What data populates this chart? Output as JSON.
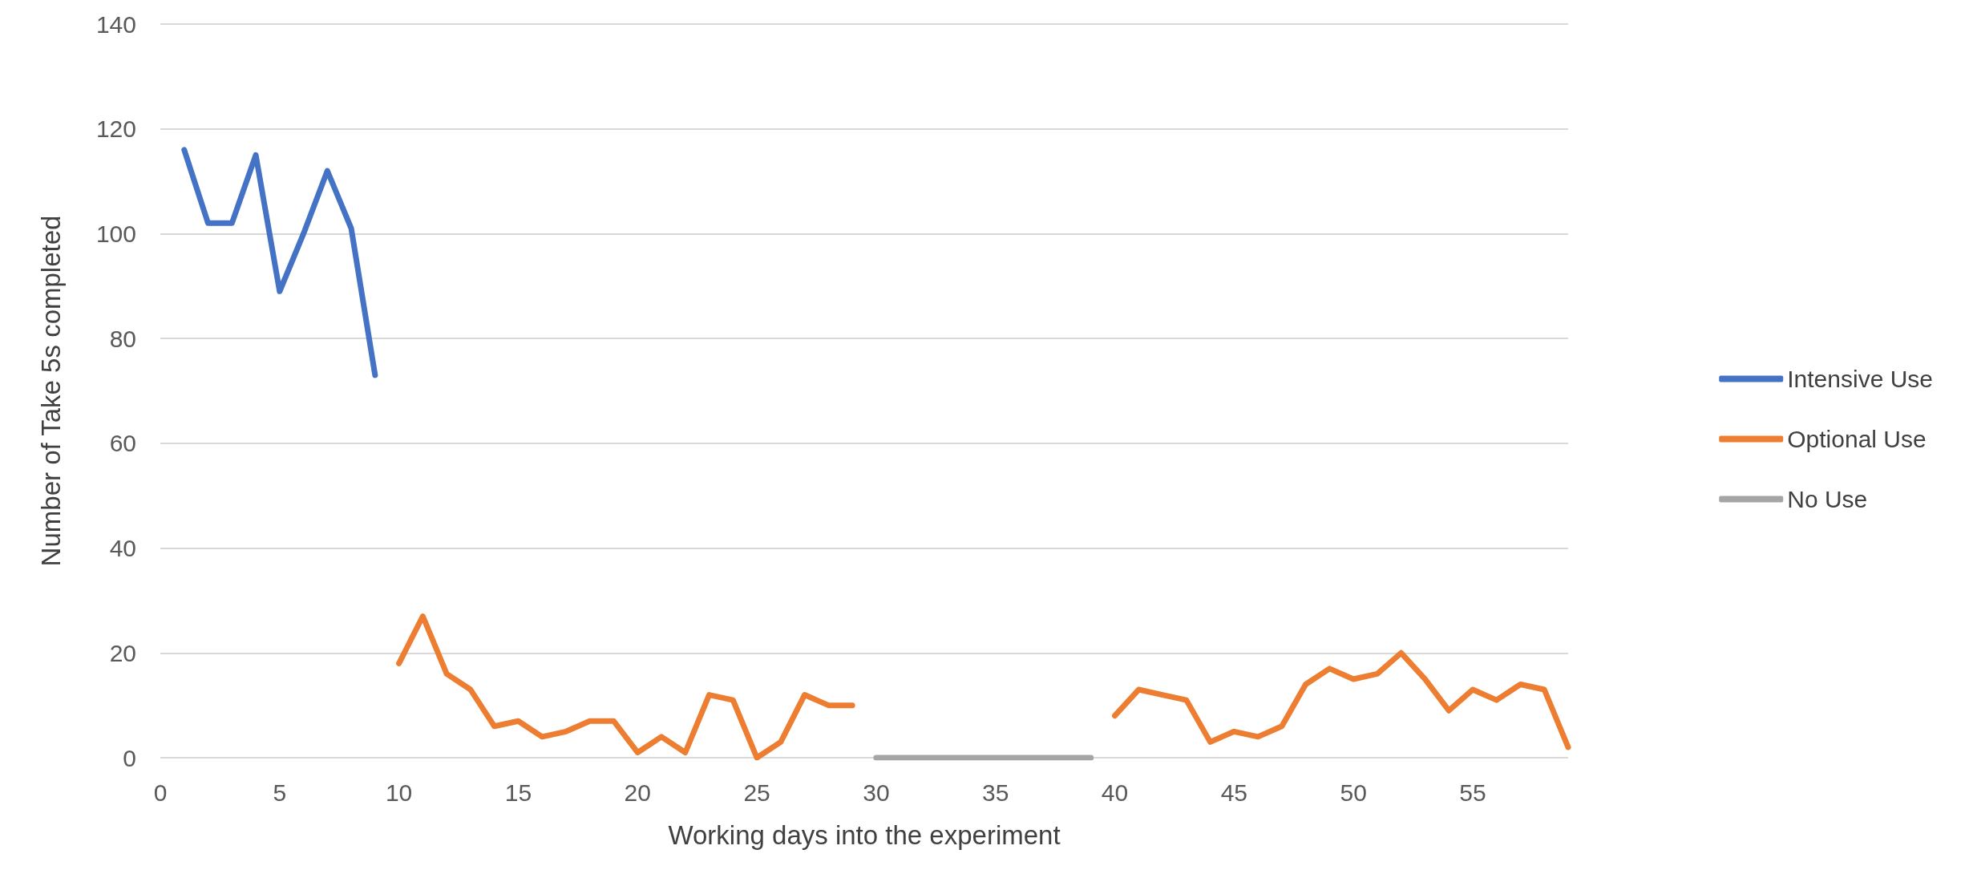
{
  "chart_data": {
    "type": "line",
    "xlabel": "Working days into the experiment",
    "ylabel": "Number of Take 5s completed",
    "xlim": [
      0,
      59
    ],
    "xticks": [
      0,
      5,
      10,
      15,
      20,
      25,
      30,
      35,
      40,
      45,
      50,
      55
    ],
    "ylim": [
      0,
      140
    ],
    "yticks": [
      0,
      20,
      40,
      60,
      80,
      100,
      120,
      140
    ],
    "grid": "y",
    "legend": "right",
    "marker": "none",
    "line_style": "solid",
    "series": [
      {
        "name": "Intensive Use",
        "color": "#4472c4",
        "x": [
          1,
          2,
          3,
          4,
          5,
          6,
          7,
          8,
          9
        ],
        "values": [
          116,
          102,
          102,
          115,
          89,
          100,
          112,
          101,
          73
        ]
      },
      {
        "name": "Optional Use",
        "color": "#ed7d31",
        "x": [
          10,
          11,
          12,
          13,
          14,
          15,
          16,
          17,
          18,
          19,
          20,
          21,
          22,
          23,
          24,
          25,
          26,
          27,
          28,
          29,
          30,
          31,
          32,
          33,
          34,
          35,
          36,
          37,
          38,
          39,
          40,
          41,
          42,
          43,
          44,
          45,
          46,
          47,
          48,
          49,
          50,
          51,
          52,
          53,
          54,
          55,
          56,
          57,
          58,
          59
        ],
        "values": [
          18,
          27,
          16,
          13,
          6,
          7,
          4,
          5,
          7,
          7,
          1,
          4,
          1,
          12,
          11,
          0,
          3,
          12,
          10,
          10,
          null,
          null,
          null,
          null,
          null,
          null,
          null,
          null,
          null,
          null,
          8,
          13,
          12,
          11,
          3,
          5,
          4,
          6,
          14,
          17,
          15,
          16,
          20,
          15,
          9,
          13,
          11,
          14,
          13,
          2
        ]
      },
      {
        "name": "No Use",
        "color": "#a5a5a5",
        "x": [
          30,
          31,
          32,
          33,
          34,
          35,
          36,
          37,
          38,
          39
        ],
        "values": [
          0,
          0,
          0,
          0,
          0,
          0,
          0,
          0,
          0,
          0
        ]
      }
    ]
  }
}
